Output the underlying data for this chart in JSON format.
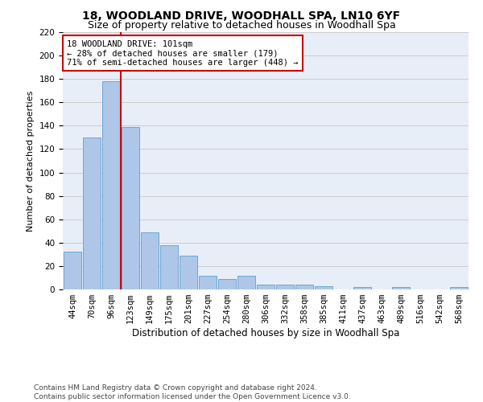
{
  "title1": "18, WOODLAND DRIVE, WOODHALL SPA, LN10 6YF",
  "title2": "Size of property relative to detached houses in Woodhall Spa",
  "xlabel": "Distribution of detached houses by size in Woodhall Spa",
  "ylabel": "Number of detached properties",
  "categories": [
    "44sqm",
    "70sqm",
    "96sqm",
    "123sqm",
    "149sqm",
    "175sqm",
    "201sqm",
    "227sqm",
    "254sqm",
    "280sqm",
    "306sqm",
    "332sqm",
    "358sqm",
    "385sqm",
    "411sqm",
    "437sqm",
    "463sqm",
    "489sqm",
    "516sqm",
    "542sqm",
    "568sqm"
  ],
  "values": [
    32,
    130,
    178,
    139,
    49,
    38,
    29,
    12,
    9,
    12,
    4,
    4,
    4,
    3,
    0,
    2,
    0,
    2,
    0,
    0,
    2
  ],
  "bar_color": "#aec6e8",
  "bar_edgecolor": "#5a9fd4",
  "vline_x": 2,
  "vline_color": "#cc0000",
  "annotation_line1": "18 WOODLAND DRIVE: 101sqm",
  "annotation_line2": "← 28% of detached houses are smaller (179)",
  "annotation_line3": "71% of semi-detached houses are larger (448) →",
  "annotation_box_edgecolor": "#cc0000",
  "ylim": [
    0,
    220
  ],
  "yticks": [
    0,
    20,
    40,
    60,
    80,
    100,
    120,
    140,
    160,
    180,
    200,
    220
  ],
  "grid_color": "#cccccc",
  "bg_color": "#e8eef8",
  "footer": "Contains HM Land Registry data © Crown copyright and database right 2024.\nContains public sector information licensed under the Open Government Licence v3.0.",
  "title1_fontsize": 10,
  "title2_fontsize": 9,
  "xlabel_fontsize": 8.5,
  "ylabel_fontsize": 8,
  "tick_fontsize": 7.5,
  "annotation_fontsize": 7.5,
  "footer_fontsize": 6.5
}
